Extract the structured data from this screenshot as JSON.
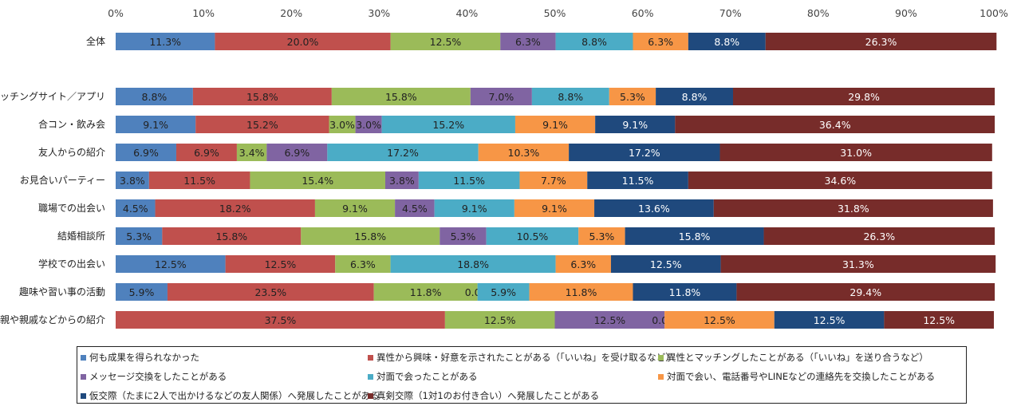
{
  "chart_data": {
    "type": "bar",
    "orientation": "horizontal",
    "stacked": "percent",
    "title": "",
    "xlabel": "",
    "ylabel": "",
    "xlim": [
      0,
      100
    ],
    "x_ticks": [
      "0%",
      "10%",
      "20%",
      "30%",
      "40%",
      "50%",
      "60%",
      "70%",
      "80%",
      "90%",
      "100%"
    ],
    "grid": false,
    "legend_position": "bottom",
    "categories": [
      "全体",
      "マッチングサイト／アプリ",
      "合コン・飲み会",
      "友人からの紹介",
      "お見合いパーティー",
      "職場での出会い",
      "結婚相談所",
      "学校での出会い",
      "趣味や習い事の活動",
      "親や親戚などからの紹介"
    ],
    "series": [
      {
        "name": "何も成果を得られなかった",
        "color": "#4f81bd",
        "values": [
          11.3,
          8.8,
          9.1,
          6.9,
          3.8,
          4.5,
          5.3,
          12.5,
          5.9,
          0.0
        ],
        "labels": [
          "11.3%",
          "8.8%",
          "9.1%",
          "6.9%",
          "3.8%",
          "4.5%",
          "5.3%",
          "12.5%",
          "5.9%",
          ""
        ]
      },
      {
        "name": "異性から興味・好意を示されたことがある（「いいね」を受け取るなど）",
        "color": "#c0504d",
        "values": [
          20.0,
          15.8,
          15.2,
          6.9,
          11.5,
          18.2,
          15.8,
          12.5,
          23.5,
          37.5
        ],
        "labels": [
          "20.0%",
          "15.8%",
          "15.2%",
          "6.9%",
          "11.5%",
          "18.2%",
          "15.8%",
          "12.5%",
          "23.5%",
          "37.5%"
        ]
      },
      {
        "name": "異性とマッチングしたことがある（「いいね」を送り合うなど）",
        "color": "#9bbb59",
        "values": [
          12.5,
          15.8,
          3.0,
          3.4,
          15.4,
          9.1,
          15.8,
          6.3,
          11.8,
          12.5
        ],
        "labels": [
          "12.5%",
          "15.8%",
          "3.0%",
          "3.4%",
          "15.4%",
          "9.1%",
          "15.8%",
          "6.3%",
          "11.8%",
          "12.5%"
        ]
      },
      {
        "name": "メッセージ交換をしたことがある",
        "color": "#8064a2",
        "values": [
          6.3,
          7.0,
          3.0,
          6.9,
          3.8,
          4.5,
          5.3,
          0.0,
          0.0,
          12.5
        ],
        "labels": [
          "6.3%",
          "7.0%",
          "3.0%",
          "6.9%",
          "3.8%",
          "4.5%",
          "5.3%",
          "",
          "0.0%",
          "12.5%"
        ]
      },
      {
        "name": "対面で会ったことがある",
        "color": "#4bacc6",
        "values": [
          8.8,
          8.8,
          15.2,
          17.2,
          11.5,
          9.1,
          10.5,
          18.8,
          5.9,
          0.0
        ],
        "labels": [
          "8.8%",
          "8.8%",
          "15.2%",
          "17.2%",
          "11.5%",
          "9.1%",
          "10.5%",
          "18.8%",
          "5.9%",
          "0.0%"
        ]
      },
      {
        "name": "対面で会い、電話番号やLINEなどの連絡先を交換したことがある",
        "color": "#f79646",
        "values": [
          6.3,
          5.3,
          9.1,
          10.3,
          7.7,
          9.1,
          5.3,
          6.3,
          11.8,
          12.5
        ],
        "labels": [
          "6.3%",
          "5.3%",
          "9.1%",
          "10.3%",
          "7.7%",
          "9.1%",
          "5.3%",
          "6.3%",
          "11.8%",
          "12.5%"
        ]
      },
      {
        "name": "仮交際（たまに2人で出かけるなどの友人関係）へ発展したことがある",
        "color": "#1f497d",
        "values": [
          8.8,
          8.8,
          9.1,
          17.2,
          11.5,
          13.6,
          15.8,
          12.5,
          11.8,
          12.5
        ],
        "labels": [
          "8.8%",
          "8.8%",
          "9.1%",
          "17.2%",
          "11.5%",
          "13.6%",
          "15.8%",
          "12.5%",
          "11.8%",
          "12.5%"
        ]
      },
      {
        "name": "真剣交際（1対1のお付き合い）へ発展したことがある",
        "color": "#772c2a",
        "values": [
          26.3,
          29.8,
          36.4,
          31.0,
          34.6,
          31.8,
          26.3,
          31.3,
          29.4,
          12.5
        ],
        "labels": [
          "26.3%",
          "29.8%",
          "36.4%",
          "31.0%",
          "34.6%",
          "31.8%",
          "26.3%",
          "31.3%",
          "29.4%",
          "12.5%"
        ]
      }
    ]
  }
}
